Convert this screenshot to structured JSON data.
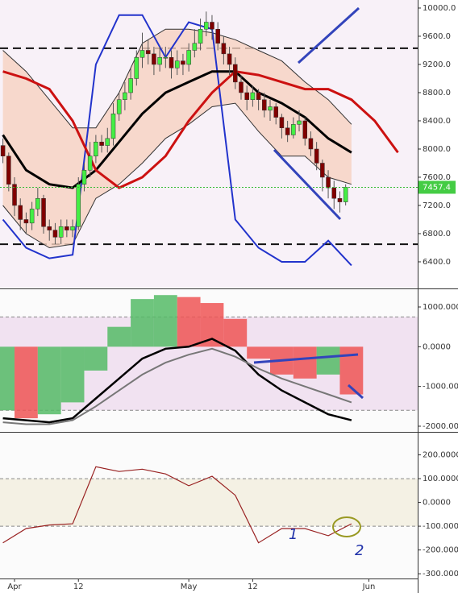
{
  "chart_data": [
    {
      "type": "candlestick",
      "x": [
        -2,
        -1,
        0,
        1,
        2,
        3,
        4,
        5,
        6,
        7,
        8,
        9,
        10,
        11,
        12,
        13,
        14,
        15,
        16,
        17,
        18,
        19,
        20,
        21,
        22,
        23,
        24,
        25,
        26,
        27,
        28,
        29,
        30,
        31,
        32,
        33,
        34,
        35,
        36,
        37,
        38,
        39,
        40,
        41,
        42,
        43,
        44,
        45,
        46,
        47,
        48,
        49,
        50,
        51,
        52,
        53,
        54,
        55,
        56,
        57
      ],
      "open": [
        8050,
        7900,
        7500,
        7200,
        7000,
        6950,
        7150,
        7300,
        6900,
        6850,
        6750,
        6900,
        6850,
        6900,
        7500,
        7700,
        7900,
        8100,
        8050,
        8150,
        8500,
        8700,
        8800,
        9000,
        9300,
        9400,
        9350,
        9200,
        9300,
        9300,
        9150,
        9250,
        9200,
        9400,
        9500,
        9700,
        9800,
        9700,
        9500,
        9350,
        9200,
        8950,
        8800,
        8700,
        8800,
        8700,
        8550,
        8600,
        8450,
        8300,
        8200,
        8350,
        8400,
        8150,
        8000,
        7800,
        7600,
        7450,
        7300,
        7250
      ],
      "high": [
        8150,
        7950,
        7600,
        7300,
        7100,
        7250,
        7450,
        7350,
        7000,
        6950,
        7000,
        7000,
        7000,
        7600,
        7800,
        8100,
        8200,
        8200,
        8300,
        8650,
        8800,
        8950,
        9150,
        9400,
        9650,
        9550,
        9450,
        9450,
        9450,
        9400,
        9400,
        9350,
        9500,
        9700,
        9850,
        9950,
        9900,
        9800,
        9600,
        9450,
        9300,
        9050,
        8900,
        8900,
        8850,
        8800,
        8700,
        8650,
        8500,
        8400,
        8450,
        8550,
        8450,
        8250,
        8100,
        7850,
        7700,
        7550,
        7400,
        7500
      ],
      "low": [
        7800,
        7400,
        7050,
        6850,
        6800,
        6850,
        7050,
        6800,
        6700,
        6650,
        6650,
        6750,
        6750,
        6850,
        7400,
        7600,
        7800,
        7950,
        7950,
        8050,
        8400,
        8550,
        8700,
        8900,
        9150,
        9200,
        9050,
        9100,
        9150,
        9000,
        9050,
        9050,
        9100,
        9300,
        9400,
        9600,
        9550,
        9400,
        9200,
        9050,
        8850,
        8700,
        8550,
        8600,
        8550,
        8450,
        8400,
        8350,
        8150,
        8100,
        8150,
        8250,
        8050,
        7900,
        7700,
        7400,
        7300,
        7150,
        7100,
        7200
      ],
      "close": [
        7900,
        7500,
        7200,
        7000,
        6950,
        7150,
        7300,
        6900,
        6850,
        6750,
        6900,
        6850,
        6900,
        7500,
        7700,
        7900,
        8100,
        8050,
        8150,
        8500,
        8700,
        8800,
        9000,
        9300,
        9400,
        9350,
        9200,
        9300,
        9300,
        9150,
        9250,
        9200,
        9400,
        9500,
        9700,
        9800,
        9700,
        9500,
        9350,
        9200,
        8950,
        8800,
        8700,
        8800,
        8700,
        8550,
        8600,
        8450,
        8300,
        8200,
        8350,
        8400,
        8150,
        8000,
        7800,
        7600,
        7450,
        7300,
        7250,
        7457.4
      ],
      "up_color": "#44ee44",
      "down_color": "#800000",
      "xlim": [
        -2.5,
        69.4
      ],
      "ylim": [
        6034,
        10114
      ],
      "yticks": [
        {
          "value": 6400,
          "label": "6400.0"
        },
        {
          "value": 6800,
          "label": "6800.0"
        },
        {
          "value": 7200,
          "label": "7200.0"
        },
        {
          "value": 7600,
          "label": "7600.0"
        },
        {
          "value": 8000,
          "label": "8000.0"
        },
        {
          "value": 8400,
          "label": "8400.0"
        },
        {
          "value": 8800,
          "label": "8800.0"
        },
        {
          "value": 9200,
          "label": "9200.0"
        },
        {
          "value": 9600,
          "label": "9600.0"
        },
        {
          "value": 10000,
          "label": "10000.0"
        }
      ],
      "band": {
        "x": [
          -2,
          2,
          6,
          10,
          14,
          18,
          22,
          26,
          30,
          34,
          38,
          42,
          46,
          50,
          54,
          58
        ],
        "upper": [
          9400,
          9100,
          8700,
          8300,
          8300,
          8800,
          9500,
          9700,
          9700,
          9650,
          9550,
          9400,
          9250,
          8950,
          8700,
          8350
        ],
        "lower": [
          7200,
          6800,
          6600,
          6650,
          7300,
          7500,
          7800,
          8150,
          8350,
          8600,
          8650,
          8250,
          7900,
          7900,
          7600,
          7500
        ],
        "color": "#f6d2c0"
      },
      "lines": {
        "x": [
          -2,
          2,
          6,
          10,
          14,
          18,
          22,
          26,
          30,
          34,
          38,
          42,
          46,
          50,
          54,
          58,
          62,
          66
        ],
        "series": [
          {
            "color": "#2233cc",
            "width": 2,
            "values": [
              7000,
              6600,
              6450,
              6500,
              9200,
              9900,
              9900,
              9300,
              9800,
              9700,
              7000,
              6600,
              6400,
              6400,
              6700,
              6350,
              null,
              null
            ]
          },
          {
            "color": "#000000",
            "width": 3,
            "values": [
              8200,
              7700,
              7500,
              7450,
              7700,
              8100,
              8500,
              8800,
              8950,
              9100,
              9100,
              8800,
              8650,
              8450,
              8150,
              7950,
              null,
              null
            ]
          },
          {
            "color": "#cc1111",
            "width": 3,
            "values": [
              9100,
              9000,
              8850,
              8400,
              7700,
              7450,
              7600,
              7900,
              8400,
              8800,
              9100,
              9050,
              8950,
              8850,
              8850,
              8700,
              8400,
              7950
            ]
          }
        ]
      },
      "hlines": [
        9430,
        6650
      ],
      "last_price": 7457.4
    },
    {
      "type": "area",
      "x": [
        -2,
        2,
        6,
        10,
        14,
        18,
        22,
        26,
        30,
        34,
        38,
        42,
        46,
        50,
        54,
        58
      ],
      "values": [
        -1600,
        -1800,
        -1700,
        -1400,
        -600,
        500,
        1200,
        1300,
        1250,
        1100,
        700,
        -300,
        -700,
        -800,
        -700,
        -1200
      ],
      "rise_color": "#55bb66",
      "fall_color": "#ee5555",
      "lines": [
        {
          "color": "#000000",
          "width": 2.5,
          "values": [
            -1800,
            -1850,
            -1900,
            -1800,
            -1300,
            -800,
            -300,
            -50,
            0,
            200,
            -100,
            -700,
            -1100,
            -1400,
            -1700,
            -1850
          ]
        },
        {
          "color": "#777777",
          "width": 2,
          "values": [
            -1900,
            -1950,
            -1950,
            -1850,
            -1500,
            -1100,
            -700,
            -400,
            -200,
            -50,
            -250,
            -550,
            -800,
            -1000,
            -1200,
            -1400
          ]
        }
      ],
      "hlines": [
        750,
        -1600
      ],
      "xlim": [
        -2.5,
        69.4
      ],
      "ylim": [
        -2122,
        1426
      ],
      "yticks": [
        {
          "value": -2000,
          "label": "-2000.0000"
        },
        {
          "value": -1000,
          "label": "-1000.0000"
        },
        {
          "value": 0,
          "label": "0.0000"
        },
        {
          "value": 1000,
          "label": "1000.0000"
        }
      ]
    },
    {
      "type": "line",
      "x": [
        -2,
        2,
        6,
        10,
        14,
        18,
        22,
        26,
        30,
        34,
        38,
        42,
        46,
        50,
        54,
        58
      ],
      "values": [
        -170,
        -110,
        -95,
        -90,
        150,
        130,
        140,
        120,
        70,
        110,
        30,
        -170,
        -110,
        -110,
        -140,
        -90
      ],
      "color": "#992222",
      "hlines": [
        100,
        -100
      ],
      "xlim": [
        -2.5,
        69.4
      ],
      "ylim": [
        -320,
        290
      ],
      "yticks": [
        {
          "value": -300,
          "label": "-300.0000"
        },
        {
          "value": -200,
          "label": "-200.0000"
        },
        {
          "value": -100,
          "label": "-100.0000"
        },
        {
          "value": 0,
          "label": "0.0000"
        },
        {
          "value": 100,
          "label": "100.0000"
        },
        {
          "value": 200,
          "label": "200.0000"
        }
      ],
      "xticks": [
        {
          "value": 0,
          "label": "Apr"
        },
        {
          "value": 11,
          "label": "12"
        },
        {
          "value": 30,
          "label": "May"
        },
        {
          "value": 41,
          "label": "12"
        },
        {
          "value": 61,
          "label": "Jun"
        }
      ],
      "annotations": [
        "1",
        "2"
      ]
    }
  ]
}
